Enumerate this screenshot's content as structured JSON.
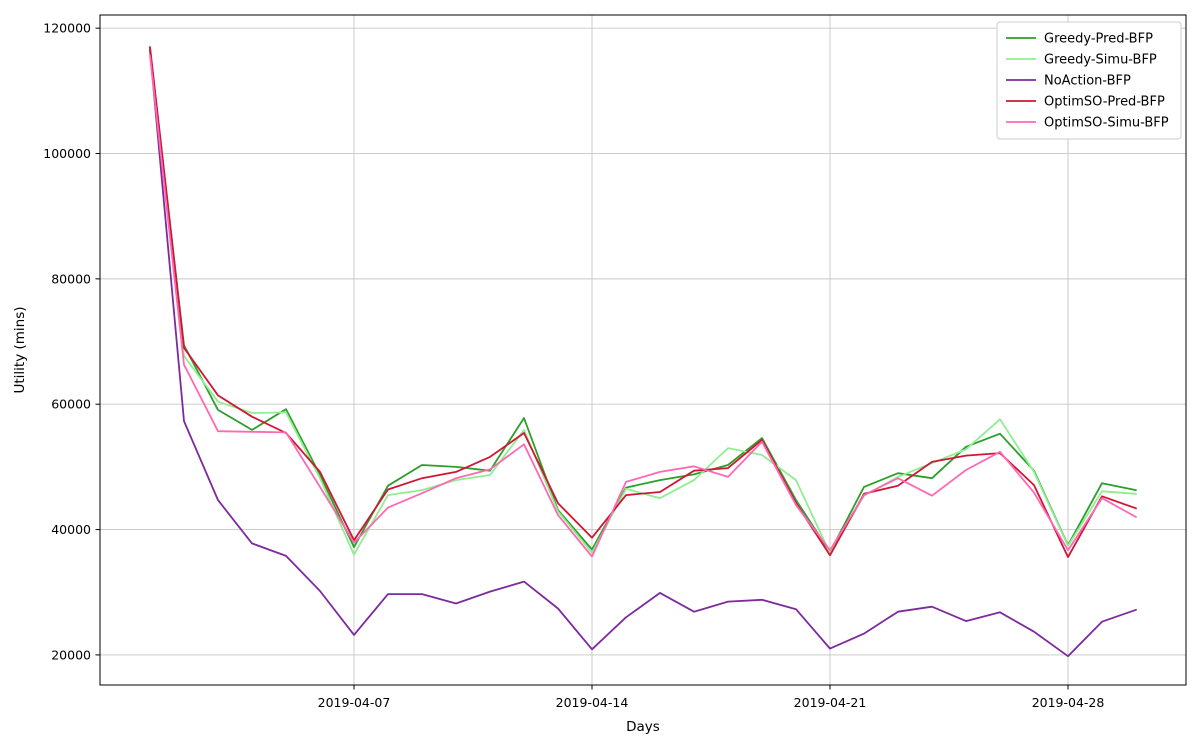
{
  "chart_data": {
    "type": "line",
    "title": "",
    "xlabel": "Days",
    "ylabel": "Utility (mins)",
    "x_points": 30,
    "x_range": [
      "2019-04-01",
      "2019-04-30"
    ],
    "x_tick_days": [
      7,
      14,
      21,
      28
    ],
    "x_tick_labels": [
      "2019-04-07",
      "2019-04-14",
      "2019-04-21",
      "2019-04-28"
    ],
    "y_ticks": [
      20000,
      40000,
      60000,
      80000,
      100000,
      120000
    ],
    "y_tick_labels": [
      "20000",
      "40000",
      "60000",
      "80000",
      "100000",
      "120000"
    ],
    "ylim": [
      15200,
      122100
    ],
    "xlim_days": [
      -0.47,
      31.47
    ],
    "grid": true,
    "legend_position": "upper right",
    "colors": {
      "grid": "#c6c6c6",
      "spine": "#000000",
      "background": "#ffffff"
    },
    "series": [
      {
        "name": "Greedy-Pred-BFP",
        "color": "#2b9e2b",
        "values": [
          116800,
          69400,
          59100,
          55900,
          59200,
          48700,
          37200,
          47000,
          50300,
          50000,
          49400,
          57800,
          43100,
          36800,
          46700,
          47900,
          48800,
          50300,
          54600,
          44700,
          36400,
          46800,
          49000,
          48200,
          53200,
          55300,
          49400,
          37500,
          47400,
          46300
        ]
      },
      {
        "name": "Greedy-Simu-BFP",
        "color": "#90ee90",
        "values": [
          116300,
          67700,
          60400,
          58600,
          58700,
          48200,
          36000,
          45500,
          46300,
          47900,
          48700,
          55900,
          42900,
          36300,
          46500,
          45000,
          47900,
          53000,
          51900,
          47900,
          36200,
          45400,
          48400,
          50600,
          52800,
          57600,
          49200,
          37400,
          46100,
          45700
        ]
      },
      {
        "name": "NoAction-BFP",
        "color": "#7d2a9e",
        "values": [
          116500,
          57300,
          44700,
          37800,
          35800,
          30200,
          23200,
          29700,
          29700,
          28200,
          30100,
          31700,
          27400,
          20900,
          26000,
          29900,
          26900,
          28500,
          28800,
          27300,
          21000,
          23400,
          26900,
          27700,
          25400,
          26800,
          23700,
          19800,
          25300,
          27200
        ]
      },
      {
        "name": "OptimSO-Pred-BFP",
        "color": "#d01635",
        "values": [
          117000,
          69000,
          61400,
          58000,
          55400,
          49200,
          38300,
          46400,
          48200,
          49200,
          51600,
          55400,
          44200,
          38700,
          45500,
          46000,
          49400,
          49800,
          54300,
          44200,
          35900,
          45700,
          47000,
          50800,
          51800,
          52200,
          47100,
          35600,
          45300,
          43400
        ]
      },
      {
        "name": "OptimSO-Simu-BFP",
        "color": "#ff69b4",
        "values": [
          115600,
          66300,
          55700,
          55600,
          55500,
          46800,
          37900,
          43500,
          45800,
          48200,
          49600,
          53600,
          42300,
          35700,
          47600,
          49200,
          50100,
          48400,
          54000,
          43900,
          36700,
          45500,
          48200,
          45400,
          49500,
          52400,
          45900,
          36700,
          45000,
          42000
        ]
      }
    ]
  }
}
